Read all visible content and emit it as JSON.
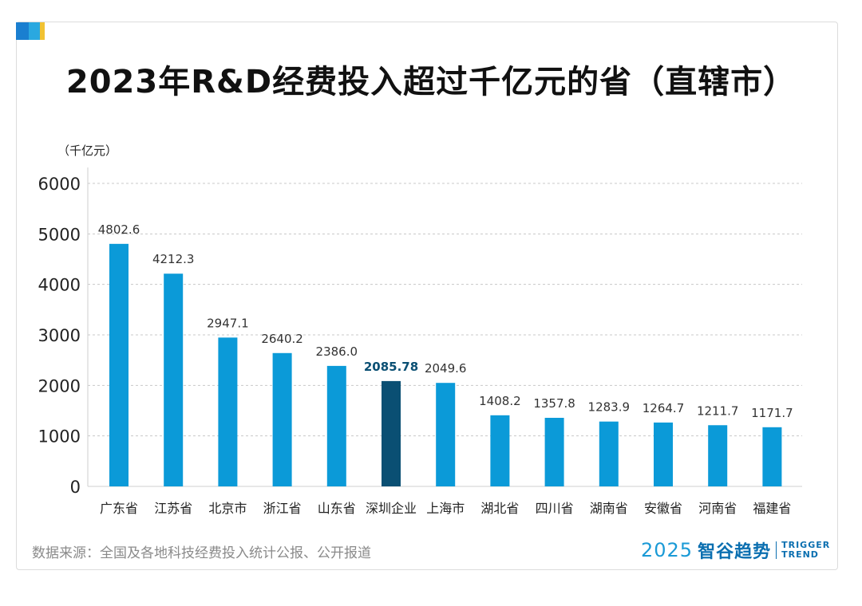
{
  "title": "2023年R&D经费投入超过千亿元的省（直辖市）",
  "unit_label": "（千亿元）",
  "source": "数据来源：全国及各地科技经费投入统计公报、公开报道",
  "logo": {
    "year": "2025",
    "name": "智谷趋势",
    "en_line1": "TRIGGER",
    "en_line2": "TREND"
  },
  "colors": {
    "bar": "#0b9ad8",
    "highlight": "#0a4f73",
    "accent_blue": "#1a7fd0",
    "accent_light": "#2aa8e0",
    "accent_yellow": "#f1c232"
  },
  "chart_data": {
    "type": "bar",
    "title": "2023年R&D经费投入超过千亿元的省（直辖市）",
    "ylabel": "（千亿元）",
    "xlabel": "",
    "ylim": [
      0,
      6000
    ],
    "yticks": [
      0,
      1000,
      2000,
      3000,
      4000,
      5000,
      6000
    ],
    "grid": true,
    "categories": [
      "广东省",
      "江苏省",
      "北京市",
      "浙江省",
      "山东省",
      "深圳企业",
      "上海市",
      "湖北省",
      "四川省",
      "湖南省",
      "安徽省",
      "河南省",
      "福建省"
    ],
    "values": [
      4802.6,
      4212.3,
      2947.1,
      2640.2,
      2386.0,
      2085.78,
      2049.6,
      1408.2,
      1357.8,
      1283.9,
      1264.7,
      1211.7,
      1171.7
    ],
    "labels": [
      "4802.6",
      "4212.3",
      "2947.1",
      "2640.2",
      "2386.0",
      "2085.78",
      "2049.6",
      "1408.2",
      "1357.8",
      "1283.9",
      "1264.7",
      "1211.7",
      "1171.7"
    ],
    "highlight_category": "深圳企业"
  }
}
